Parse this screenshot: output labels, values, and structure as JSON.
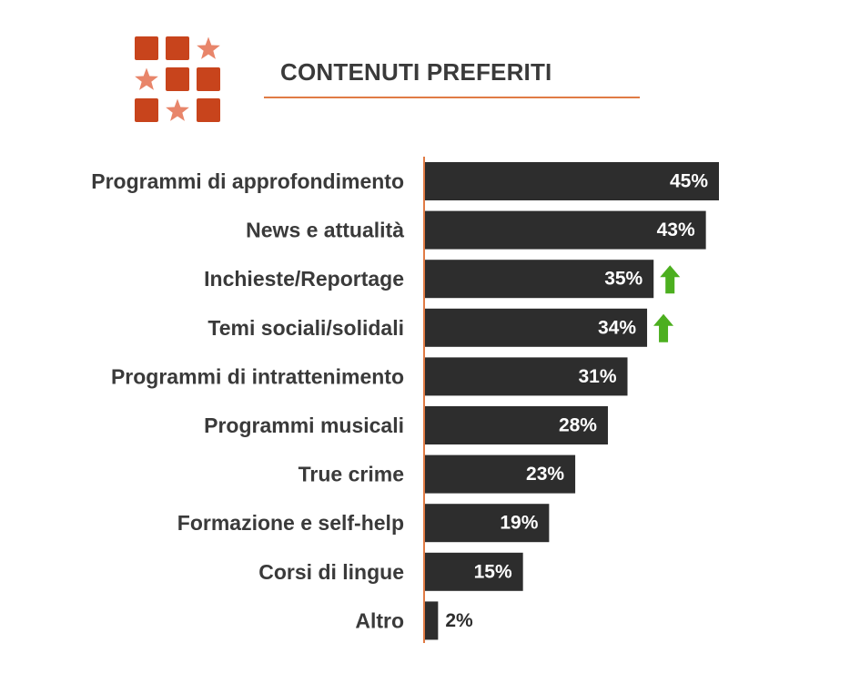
{
  "header": {
    "title": "CONTENUTI PREFERITI",
    "logo_icon": "grid-of-squares-and-stars-icon",
    "accent_color": "#e07b45",
    "logo_square_color": "#c8441c",
    "logo_star_color": "#e8856a"
  },
  "chart_data": {
    "type": "bar",
    "orientation": "horizontal",
    "title": "CONTENUTI PREFERITI",
    "xlabel": "",
    "ylabel": "",
    "xlim": [
      0,
      45
    ],
    "grid": false,
    "legend": "none",
    "bar_color": "#2d2d2d",
    "axis_color": "#e07b45",
    "value_label_inside_color": "#ffffff",
    "value_label_outside_color": "#2d2d2d",
    "trend_icon": "up-arrow-icon",
    "trend_color": "#4caf1f",
    "categories": [
      "Programmi di approfondimento",
      "News e attualità",
      "Inchieste/Reportage",
      "Temi sociali/solidali",
      "Programmi di intrattenimento",
      "Programmi musicali",
      "True crime",
      "Formazione e self-help",
      "Corsi di lingue",
      "Altro"
    ],
    "values": [
      45,
      43,
      35,
      34,
      31,
      28,
      23,
      19,
      15,
      2
    ],
    "value_labels": [
      "45%",
      "43%",
      "35%",
      "34%",
      "31%",
      "28%",
      "23%",
      "19%",
      "15%",
      "2%"
    ],
    "trend_up": [
      false,
      false,
      true,
      true,
      false,
      false,
      false,
      false,
      false,
      false
    ]
  }
}
